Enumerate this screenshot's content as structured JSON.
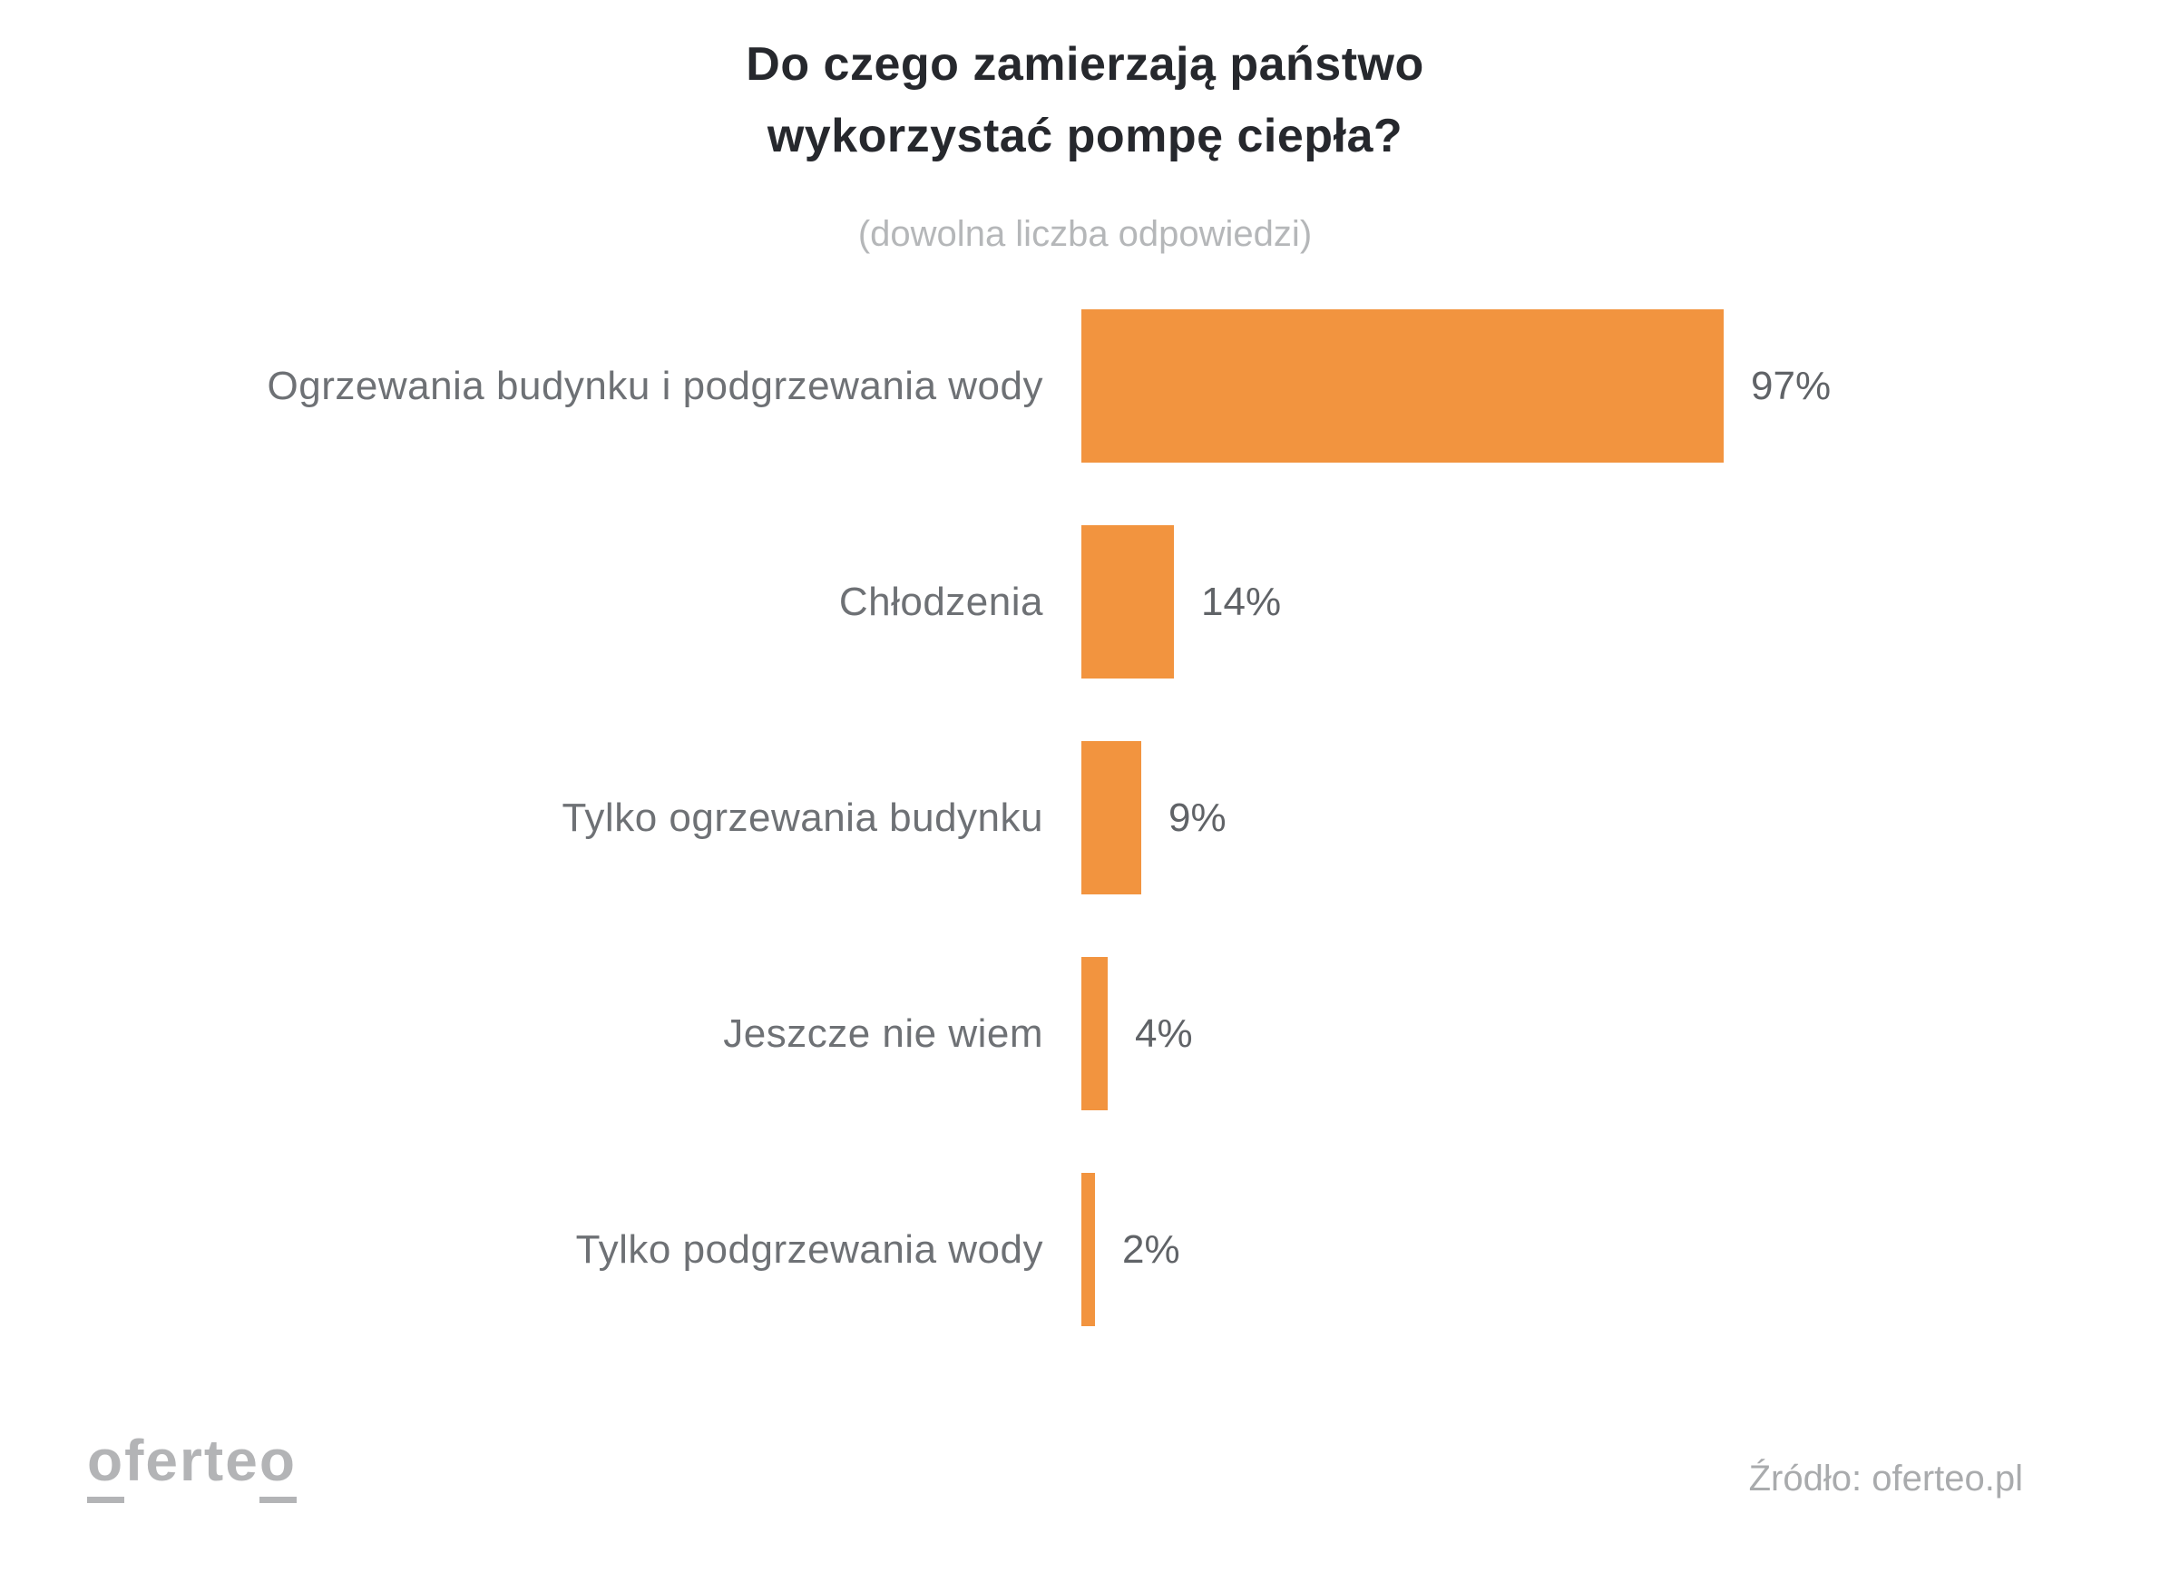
{
  "page": {
    "title_line1": "Do czego zamierzają państwo",
    "title_line2": "wykorzystać pompę ciepła?",
    "subtitle": "(dowolna liczba odpowiedzi)"
  },
  "chart": {
    "rows": [
      {
        "label": "Ogrzewania budynku i podgrzewania wody",
        "value": 97,
        "value_label": "97%"
      },
      {
        "label": "Chłodzenia",
        "value": 14,
        "value_label": "14%"
      },
      {
        "label": "Tylko ogrzewania budynku",
        "value": 9,
        "value_label": "9%"
      },
      {
        "label": "Jeszcze nie wiem",
        "value": 4,
        "value_label": "4%"
      },
      {
        "label": "Tylko podgrzewania wody",
        "value": 2,
        "value_label": "2%"
      }
    ]
  },
  "footer": {
    "logo": {
      "first_letter": "o",
      "middle": "ferte",
      "last_letter": "o"
    },
    "source": "Źródło: oferteo.pl"
  },
  "colors": {
    "bar": "#F2943F",
    "title": "#26282D",
    "label": "#6E7175",
    "value": "#606367",
    "subtitle": "#B5B7B9",
    "logo": "#B3B4B6",
    "source": "#A9ABAD"
  },
  "chart_data": {
    "type": "bar",
    "orientation": "horizontal",
    "title": "Do czego zamierzają państwo wykorzystać pompę ciepła?",
    "subtitle": "(dowolna liczba odpowiedzi)",
    "categories": [
      "Ogrzewania budynku i podgrzewania wody",
      "Chłodzenia",
      "Tylko ogrzewania budynku",
      "Jeszcze nie wiem",
      "Tylko podgrzewania wody"
    ],
    "values": [
      97,
      14,
      9,
      4,
      2
    ],
    "data_labels": [
      "97%",
      "14%",
      "9%",
      "4%",
      "2%"
    ],
    "unit": "%",
    "xlim": [
      0,
      100
    ],
    "grid": false,
    "legend": false,
    "bar_color": "#F2943F",
    "source": "Źródło: oferteo.pl"
  }
}
